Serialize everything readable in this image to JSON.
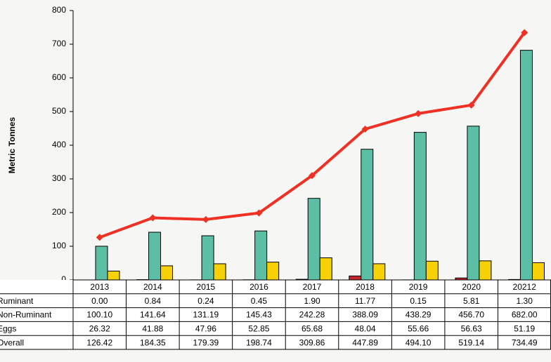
{
  "chart_data": {
    "type": "bar",
    "y_label": "Metric Tonnes",
    "categories": [
      "2013",
      "2014",
      "2015",
      "2016",
      "2017",
      "2018",
      "2019",
      "2020",
      "20212"
    ],
    "ylim": [
      0,
      800
    ],
    "yticks": [
      0,
      100,
      200,
      300,
      400,
      500,
      600,
      700,
      800
    ],
    "series": [
      {
        "name": "Ruminant",
        "color": "#c1272d",
        "type": "bar",
        "values": [
          0.0,
          0.84,
          0.24,
          0.45,
          1.9,
          11.77,
          0.15,
          5.81,
          1.3
        ],
        "value_labels": [
          "0.00",
          "0.84",
          "0.24",
          "0.45",
          "1.90",
          "11.77",
          "0.15",
          "5.81",
          "1.30"
        ]
      },
      {
        "name": "Non-Ruminant",
        "color": "#5dbea6",
        "type": "bar",
        "values": [
          100.1,
          141.64,
          131.19,
          145.43,
          242.28,
          388.09,
          438.29,
          456.7,
          682.0
        ],
        "value_labels": [
          "100.10",
          "141.64",
          "131.19",
          "145.43",
          "242.28",
          "388.09",
          "438.29",
          "456.70",
          "682.00"
        ]
      },
      {
        "name": "Eggs",
        "color": "#f6d106",
        "type": "bar",
        "values": [
          26.32,
          41.88,
          47.96,
          52.85,
          65.68,
          48.04,
          55.66,
          56.63,
          51.19
        ],
        "value_labels": [
          "26.32",
          "41.88",
          "47.96",
          "52.85",
          "65.68",
          "48.04",
          "55.66",
          "56.63",
          "51.19"
        ]
      },
      {
        "name": "Overall",
        "color": "#ee3124",
        "type": "line",
        "values": [
          126.42,
          184.35,
          179.39,
          198.74,
          309.86,
          447.89,
          494.1,
          519.14,
          734.49
        ],
        "value_labels": [
          "126.42",
          "184.35",
          "179.39",
          "198.74",
          "309.86",
          "447.89",
          "494.10",
          "519.14",
          "734.49"
        ]
      }
    ]
  }
}
